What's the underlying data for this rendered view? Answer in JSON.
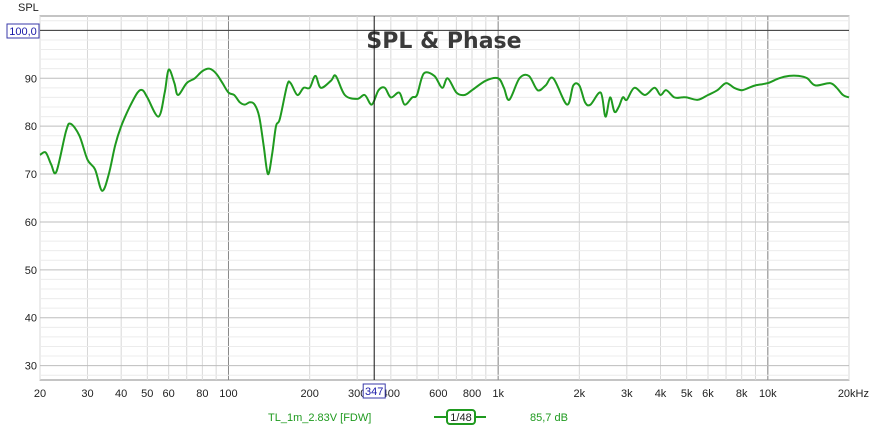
{
  "chart_data": {
    "type": "line",
    "title": "SPL & Phase",
    "ylabel": "SPL",
    "xlabel": "",
    "x_scale": "log",
    "xlim": [
      20,
      20000
    ],
    "ylim": [
      27,
      103
    ],
    "x_ticks": [
      {
        "v": 20,
        "label": "20",
        "major": true
      },
      {
        "v": 30,
        "label": "30"
      },
      {
        "v": 40,
        "label": "40"
      },
      {
        "v": 50,
        "label": "50"
      },
      {
        "v": 60,
        "label": "60"
      },
      {
        "v": 80,
        "label": "80"
      },
      {
        "v": 100,
        "label": "100",
        "major": true
      },
      {
        "v": 200,
        "label": "200"
      },
      {
        "v": 300,
        "label": "300"
      },
      {
        "v": 400,
        "label": "400"
      },
      {
        "v": 600,
        "label": "600"
      },
      {
        "v": 800,
        "label": "800"
      },
      {
        "v": 1000,
        "label": "1k",
        "major": true
      },
      {
        "v": 2000,
        "label": "2k"
      },
      {
        "v": 3000,
        "label": "3k"
      },
      {
        "v": 4000,
        "label": "4k"
      },
      {
        "v": 5000,
        "label": "5k"
      },
      {
        "v": 6000,
        "label": "6k"
      },
      {
        "v": 8000,
        "label": "8k"
      },
      {
        "v": 10000,
        "label": "10k",
        "major": true
      },
      {
        "v": 20000,
        "label": "20kHz"
      }
    ],
    "y_ticks": [
      30,
      40,
      50,
      60,
      70,
      80,
      90
    ],
    "y_top_label": "100,0",
    "grid": true,
    "cursor": {
      "x": 347,
      "label": "347"
    },
    "series": [
      {
        "name": "TL_1m_2.83V [FDW]",
        "color": "#1f9a1f",
        "smoothing_label": "1/48",
        "value_label": "85,7 dB",
        "x": [
          20,
          21,
          22,
          23,
          25,
          26,
          28,
          30,
          32,
          34,
          36,
          38,
          40,
          43,
          46,
          48,
          50,
          55,
          58,
          60,
          63,
          65,
          70,
          75,
          80,
          85,
          90,
          95,
          100,
          105,
          110,
          115,
          120,
          125,
          130,
          135,
          140,
          145,
          150,
          155,
          165,
          170,
          180,
          190,
          200,
          210,
          220,
          240,
          250,
          270,
          300,
          320,
          340,
          360,
          380,
          400,
          430,
          450,
          480,
          500,
          530,
          580,
          620,
          650,
          700,
          750,
          800,
          900,
          1000,
          1050,
          1100,
          1200,
          1300,
          1400,
          1500,
          1600,
          1800,
          1900,
          2000,
          2100,
          2200,
          2400,
          2500,
          2600,
          2700,
          2800,
          2900,
          3000,
          3200,
          3500,
          3800,
          4000,
          4200,
          4500,
          4800,
          5000,
          5500,
          6000,
          6500,
          7000,
          7500,
          8000,
          8500,
          9000,
          10000,
          11000,
          12000,
          13000,
          14000,
          15000,
          17000,
          18000,
          19000,
          20000
        ],
        "y": [
          74,
          74.5,
          72,
          70.5,
          79,
          80.5,
          78,
          73,
          71,
          66.5,
          70,
          76,
          80,
          84,
          87,
          87.5,
          86,
          82,
          87,
          91.8,
          89,
          86.5,
          89,
          90,
          91.5,
          92,
          91,
          89,
          87,
          86.5,
          85,
          84.5,
          85,
          84.5,
          82,
          76,
          70,
          74,
          80,
          81.5,
          88.5,
          89,
          86.5,
          88,
          88,
          90.5,
          88,
          89.5,
          90.5,
          86.5,
          85.7,
          86.5,
          84.5,
          87.5,
          88,
          86,
          87,
          84.5,
          86,
          86.5,
          91,
          90.5,
          88,
          90,
          87,
          86.5,
          87.5,
          89.5,
          90,
          88,
          85.5,
          90,
          90.5,
          87.5,
          88.5,
          90,
          84.5,
          88.5,
          88.5,
          85,
          84.5,
          87,
          82,
          86,
          83,
          84,
          86,
          85.5,
          88,
          86.5,
          88,
          86.5,
          87.5,
          86,
          86,
          86,
          85.5,
          86.5,
          87.5,
          89,
          88,
          87.5,
          88,
          88.5,
          89,
          90,
          90.5,
          90.5,
          90,
          88.5,
          89,
          88,
          86.5,
          86
        ]
      }
    ]
  }
}
